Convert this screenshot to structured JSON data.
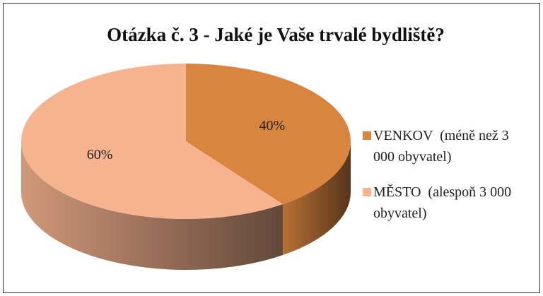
{
  "chart_data": {
    "type": "pie3d",
    "title": "Otázka č. 3 - Jaké je Vaše trvalé bydliště?",
    "categories": [
      "VENKOV  (méně než 3 000 obyvatel)",
      "MĚSTO  (alespoň 3 000 obyvatel)"
    ],
    "values": [
      40,
      60
    ],
    "value_labels": [
      "40%",
      "60%"
    ],
    "colors": [
      "#d9843f",
      "#f6b38f"
    ],
    "legend": "right"
  }
}
